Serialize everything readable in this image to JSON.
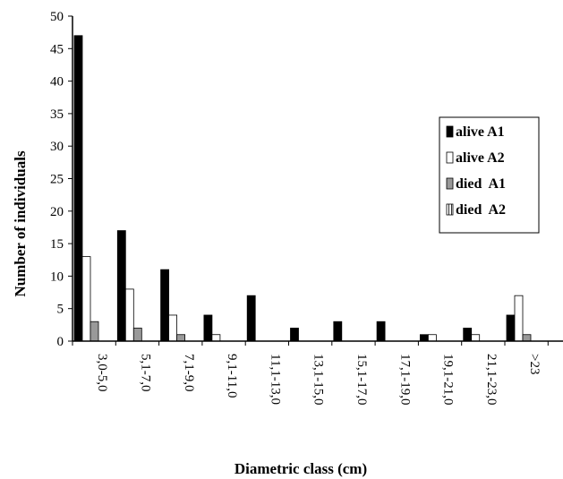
{
  "chart_data": {
    "type": "bar",
    "title": "",
    "xlabel": "Diametric class (cm)",
    "ylabel": "Number of individuals",
    "ylim": [
      0,
      50
    ],
    "yticks": [
      0,
      5,
      10,
      15,
      20,
      25,
      30,
      35,
      40,
      45,
      50
    ],
    "grid": false,
    "legend_position": "right",
    "categories": [
      "3,0-5,0",
      "5,1-7,0",
      "7,1-9,0",
      "9,1-11,0",
      "11,1-13,0",
      "13,1-15,0",
      "15,1-17,0",
      "17,1-19,0",
      "19,1-21,0",
      "21,1-23,0",
      ">23"
    ],
    "series": [
      {
        "name": "alive A1",
        "color": "#000000",
        "pattern": "solid",
        "values": [
          47,
          17,
          11,
          4,
          7,
          2,
          3,
          3,
          1,
          2,
          4
        ]
      },
      {
        "name": "alive A2",
        "color": "#ffffff",
        "pattern": "solid",
        "values": [
          13,
          8,
          4,
          1,
          0,
          0,
          0,
          0,
          1,
          1,
          7
        ]
      },
      {
        "name": "died  A1",
        "color": "#999999",
        "pattern": "solid",
        "values": [
          3,
          2,
          1,
          0,
          0,
          0,
          0,
          0,
          0,
          0,
          1
        ]
      },
      {
        "name": "died  A2",
        "color": "#ffffff",
        "pattern": "vertical-stripes",
        "values": [
          0,
          0,
          0,
          0,
          0,
          0,
          0,
          0,
          0,
          0,
          0
        ]
      }
    ]
  }
}
